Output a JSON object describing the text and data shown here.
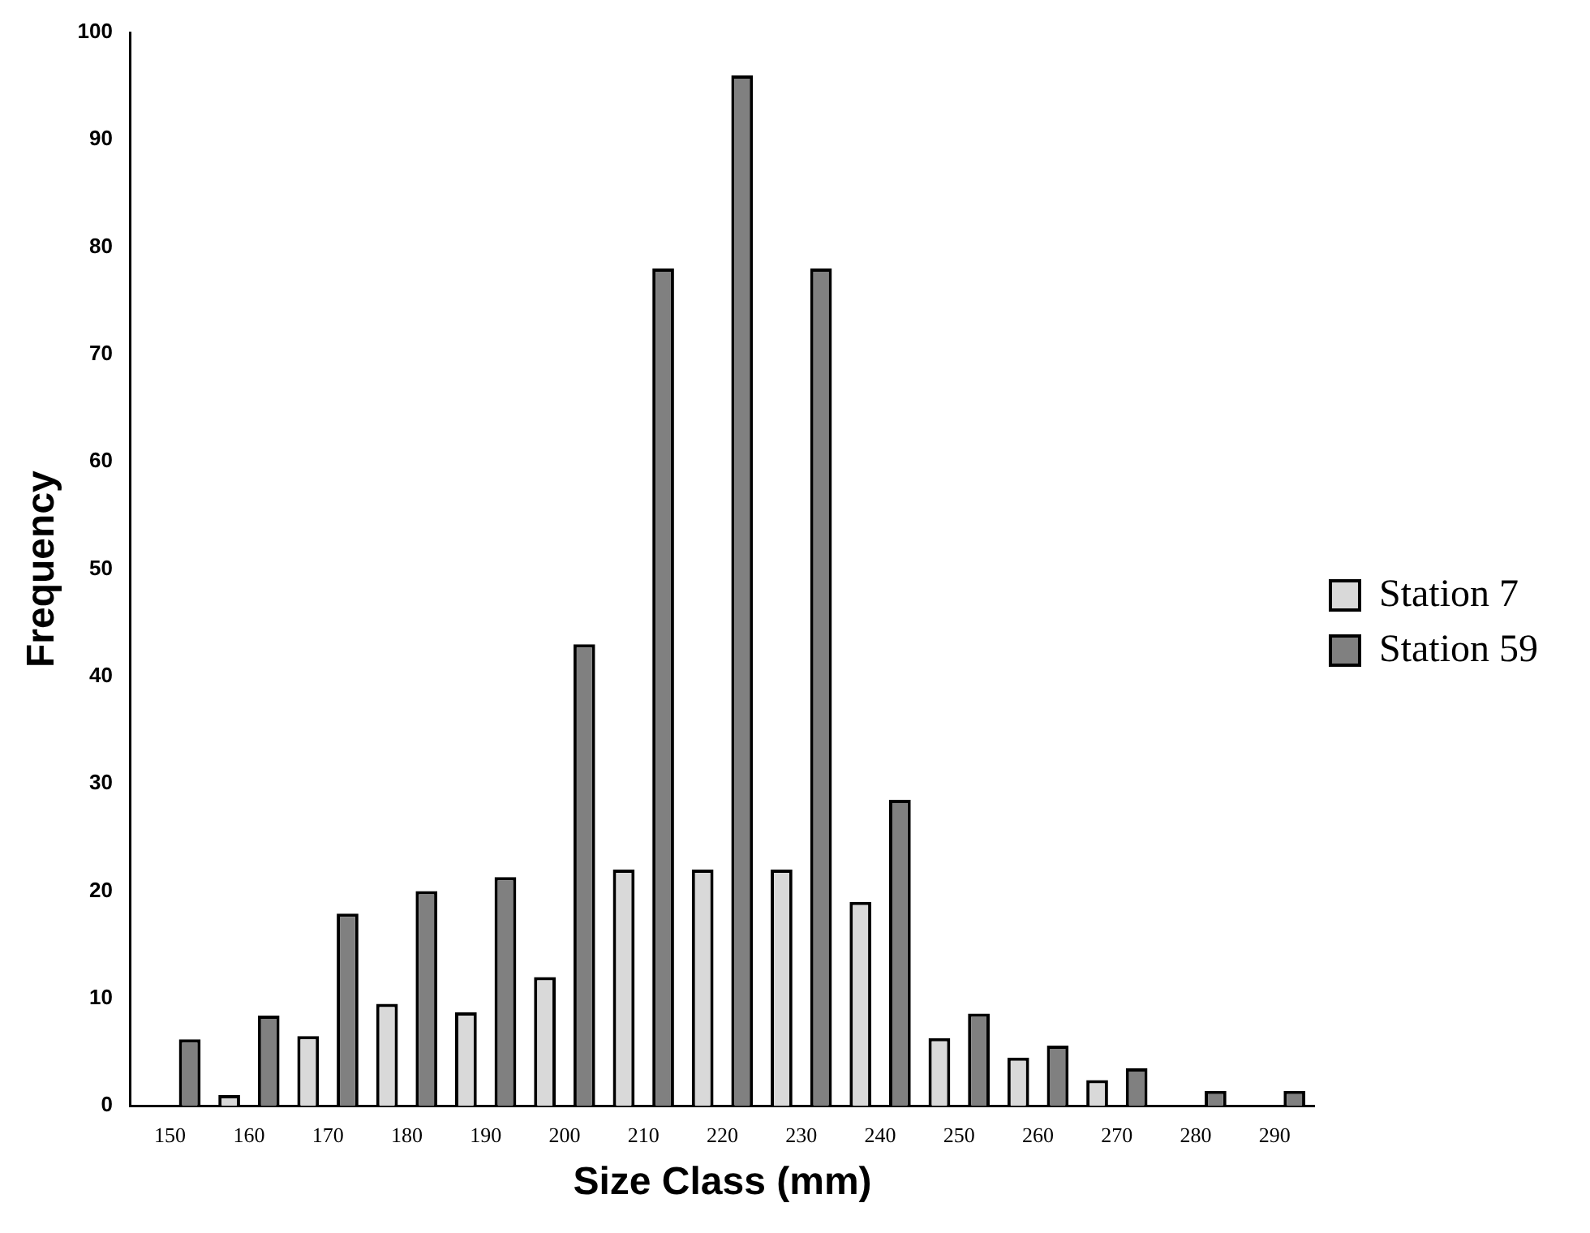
{
  "chart_data": {
    "type": "bar",
    "xlabel": "Size Class (mm)",
    "ylabel": "Frequency",
    "categories": [
      "150",
      "160",
      "170",
      "180",
      "190",
      "200",
      "210",
      "220",
      "230",
      "240",
      "250",
      "260",
      "270",
      "280",
      "290"
    ],
    "series": [
      {
        "name": "Station 7",
        "color": "#d9d9d9",
        "values": [
          0,
          1,
          6.5,
          9.5,
          8.7,
          12,
          22,
          22,
          22,
          19,
          6.3,
          4.5,
          2.4,
          0,
          0
        ]
      },
      {
        "name": "Station 59",
        "color": "#808080",
        "values": [
          6.2,
          8.4,
          17.9,
          20,
          21.3,
          43,
          78,
          96,
          78,
          28.5,
          8.6,
          5.6,
          3.5,
          1.4,
          1.4
        ]
      }
    ],
    "ylim": [
      0,
      100
    ],
    "yticks": [
      0,
      10,
      20,
      30,
      40,
      50,
      60,
      70,
      80,
      90,
      100
    ],
    "grid": false,
    "legend": "right"
  }
}
